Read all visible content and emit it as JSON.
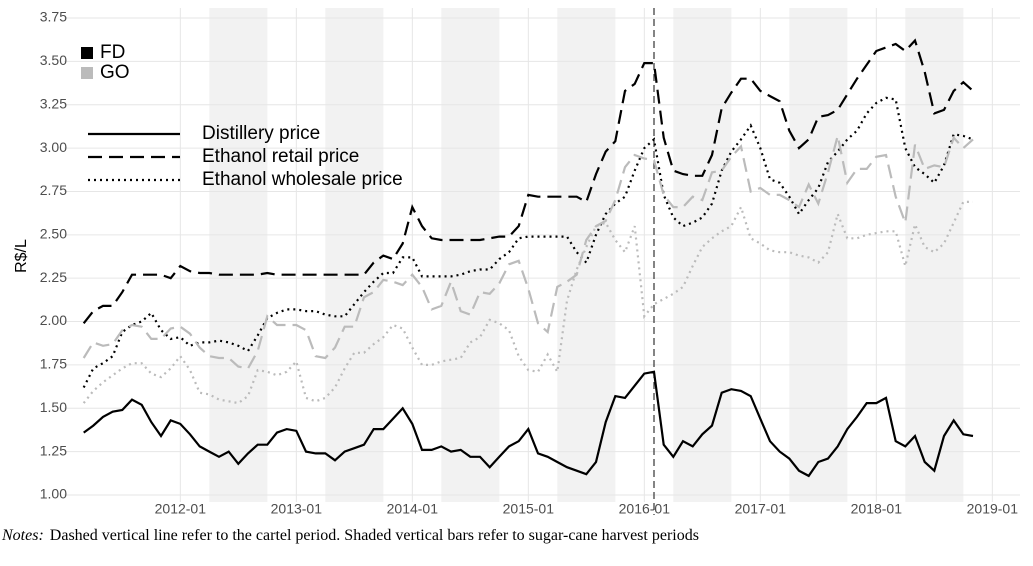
{
  "chart_data": {
    "type": "line",
    "y_label": "R$/L",
    "xlim": [
      "2011-02",
      "2019-02"
    ],
    "xticks": [
      "2012-01",
      "2013-01",
      "2014-01",
      "2015-01",
      "2016-01",
      "2017-01",
      "2018-01",
      "2019-01"
    ],
    "ylim": [
      1.0,
      3.75
    ],
    "yticks": [
      {
        "value": 1,
        "label": "1.00"
      },
      1.25,
      {
        "value": 1.5,
        "label": "1.50"
      },
      1.75,
      {
        "value": 2,
        "label": "2.00"
      },
      2.25,
      {
        "value": 2.5,
        "label": "2.50"
      },
      2.75,
      {
        "value": 3,
        "label": "3.00"
      },
      3.25,
      {
        "value": 3.5,
        "label": "3.50"
      },
      3.75
    ],
    "grid": true,
    "shaded": [
      [
        "2012-04",
        "2012-10"
      ],
      [
        "2013-04",
        "2013-10"
      ],
      [
        "2014-04",
        "2014-10"
      ],
      [
        "2015-04",
        "2015-10"
      ],
      [
        "2016-04",
        "2016-10"
      ],
      [
        "2017-04",
        "2017-10"
      ],
      [
        "2018-04",
        "2018-10"
      ]
    ],
    "shade_color": "#f2f2f2",
    "vline": "2016-02",
    "x": [
      "2011-03",
      "2011-04",
      "2011-05",
      "2011-06",
      "2011-07",
      "2011-08",
      "2011-09",
      "2011-10",
      "2011-11",
      "2011-12",
      "2012-01",
      "2012-02",
      "2012-03",
      "2012-04",
      "2012-05",
      "2012-06",
      "2012-07",
      "2012-08",
      "2012-09",
      "2012-10",
      "2012-11",
      "2012-12",
      "2013-01",
      "2013-02",
      "2013-03",
      "2013-04",
      "2013-05",
      "2013-06",
      "2013-07",
      "2013-08",
      "2013-09",
      "2013-10",
      "2013-11",
      "2013-12",
      "2014-01",
      "2014-02",
      "2014-03",
      "2014-04",
      "2014-05",
      "2014-06",
      "2014-07",
      "2014-08",
      "2014-09",
      "2014-10",
      "2014-11",
      "2014-12",
      "2015-01",
      "2015-02",
      "2015-03",
      "2015-04",
      "2015-05",
      "2015-06",
      "2015-07",
      "2015-08",
      "2015-09",
      "2015-10",
      "2015-11",
      "2015-12",
      "2016-01",
      "2016-02",
      "2016-03",
      "2016-04",
      "2016-05",
      "2016-06",
      "2016-07",
      "2016-08",
      "2016-09",
      "2016-10",
      "2016-11",
      "2016-12",
      "2017-01",
      "2017-02",
      "2017-03",
      "2017-04",
      "2017-05",
      "2017-06",
      "2017-07",
      "2017-08",
      "2017-09",
      "2017-10",
      "2017-11",
      "2017-12",
      "2018-01",
      "2018-02",
      "2018-03",
      "2018-04",
      "2018-05",
      "2018-06",
      "2018-07",
      "2018-08",
      "2018-09",
      "2018-10",
      "2018-11"
    ],
    "linetypes": [
      {
        "name": "Distillery price",
        "dash": "solid"
      },
      {
        "name": "Ethanol retail price",
        "dash": "dashed"
      },
      {
        "name": "Ethanol wholesale price",
        "dash": "dotted"
      }
    ],
    "groups": [
      {
        "name": "FD",
        "color": "#000000",
        "lines": [
          {
            "dash": "solid",
            "values": [
              1.36,
              1.4,
              1.45,
              1.48,
              1.49,
              1.55,
              1.52,
              1.42,
              1.34,
              1.43,
              1.41,
              1.35,
              1.28,
              1.25,
              1.22,
              1.25,
              1.18,
              1.24,
              1.29,
              1.29,
              1.36,
              1.38,
              1.37,
              1.25,
              1.24,
              1.24,
              1.2,
              1.25,
              1.27,
              1.29,
              1.38,
              1.38,
              1.44,
              1.5,
              1.41,
              1.26,
              1.26,
              1.28,
              1.25,
              1.26,
              1.22,
              1.22,
              1.16,
              1.22,
              1.28,
              1.31,
              1.38,
              1.24,
              1.22,
              1.19,
              1.16,
              1.14,
              1.12,
              1.19,
              1.42,
              1.57,
              1.56,
              1.63,
              1.7,
              1.71,
              1.29,
              1.22,
              1.31,
              1.28,
              1.35,
              1.4,
              1.59,
              1.61,
              1.6,
              1.57,
              1.44,
              1.31,
              1.25,
              1.21,
              1.14,
              1.11,
              1.19,
              1.21,
              1.28,
              1.38,
              1.45,
              1.53,
              1.53,
              1.56,
              1.31,
              1.28,
              1.34,
              1.19,
              1.14,
              1.34,
              1.43,
              1.35,
              1.34
            ]
          },
          {
            "dash": "dashed",
            "values": [
              1.99,
              2.06,
              2.09,
              2.09,
              2.17,
              2.27,
              2.27,
              2.27,
              2.27,
              2.25,
              2.32,
              2.29,
              2.28,
              2.28,
              2.27,
              2.27,
              2.27,
              2.27,
              2.27,
              2.28,
              2.27,
              2.27,
              2.27,
              2.27,
              2.27,
              2.27,
              2.27,
              2.27,
              2.27,
              2.27,
              2.34,
              2.38,
              2.36,
              2.45,
              2.66,
              2.55,
              2.48,
              2.47,
              2.47,
              2.47,
              2.47,
              2.47,
              2.48,
              2.49,
              2.49,
              2.55,
              2.73,
              2.72,
              2.72,
              2.72,
              2.72,
              2.72,
              2.69,
              2.85,
              2.98,
              3.04,
              3.33,
              3.37,
              3.49,
              3.49,
              3.06,
              2.87,
              2.85,
              2.84,
              2.84,
              2.96,
              3.23,
              3.32,
              3.4,
              3.4,
              3.33,
              3.3,
              3.27,
              3.1,
              3.0,
              3.05,
              3.18,
              3.19,
              3.22,
              3.31,
              3.4,
              3.48,
              3.56,
              3.58,
              3.6,
              3.56,
              3.62,
              3.44,
              3.2,
              3.22,
              3.33,
              3.38,
              3.33
            ]
          },
          {
            "dash": "dotted",
            "values": [
              1.62,
              1.73,
              1.76,
              1.8,
              1.94,
              1.98,
              2.0,
              2.05,
              1.95,
              1.9,
              1.91,
              1.86,
              1.88,
              1.88,
              1.89,
              1.88,
              1.86,
              1.83,
              1.92,
              2.02,
              2.05,
              2.07,
              2.07,
              2.06,
              2.06,
              2.04,
              2.03,
              2.03,
              2.1,
              2.17,
              2.23,
              2.28,
              2.28,
              2.37,
              2.37,
              2.26,
              2.26,
              2.26,
              2.26,
              2.27,
              2.29,
              2.3,
              2.3,
              2.36,
              2.4,
              2.48,
              2.49,
              2.49,
              2.49,
              2.49,
              2.49,
              2.4,
              2.34,
              2.5,
              2.62,
              2.68,
              2.72,
              2.87,
              3.0,
              3.05,
              2.73,
              2.6,
              2.55,
              2.57,
              2.6,
              2.68,
              2.87,
              2.98,
              3.05,
              3.13,
              3.0,
              2.82,
              2.8,
              2.72,
              2.62,
              2.7,
              2.77,
              2.92,
              2.98,
              3.05,
              3.1,
              3.2,
              3.26,
              3.29,
              3.28,
              3.0,
              2.89,
              2.85,
              2.8,
              2.9,
              3.08,
              3.07,
              3.05
            ]
          }
        ]
      },
      {
        "name": "GO",
        "color": "#bbbbbb",
        "lines": [
          {
            "dash": "dashed",
            "values": [
              1.79,
              1.88,
              1.86,
              1.87,
              1.95,
              1.98,
              1.97,
              1.9,
              1.9,
              1.96,
              1.97,
              1.93,
              1.85,
              1.8,
              1.79,
              1.79,
              1.74,
              1.73,
              1.83,
              2.03,
              1.98,
              1.98,
              1.98,
              1.95,
              1.8,
              1.79,
              1.85,
              1.97,
              1.97,
              2.14,
              2.17,
              2.24,
              2.23,
              2.21,
              2.27,
              2.2,
              2.07,
              2.09,
              2.23,
              2.06,
              2.04,
              2.17,
              2.16,
              2.22,
              2.33,
              2.35,
              2.19,
              1.99,
              1.94,
              2.2,
              2.23,
              2.27,
              2.47,
              2.55,
              2.58,
              2.7,
              2.89,
              2.96,
              2.94,
              2.93,
              2.73,
              2.66,
              2.66,
              2.72,
              2.7,
              2.86,
              2.87,
              2.95,
              3.01,
              2.75,
              2.77,
              2.73,
              2.73,
              2.7,
              2.66,
              2.79,
              2.68,
              2.86,
              3.07,
              2.8,
              2.88,
              2.88,
              2.95,
              2.96,
              2.72,
              2.57,
              3.02,
              2.88,
              2.9,
              2.89,
              3.06,
              3.0,
              3.05
            ]
          },
          {
            "dash": "dotted",
            "values": [
              1.53,
              1.6,
              1.65,
              1.69,
              1.73,
              1.76,
              1.76,
              1.7,
              1.68,
              1.73,
              1.8,
              1.72,
              1.59,
              1.58,
              1.55,
              1.54,
              1.53,
              1.57,
              1.72,
              1.71,
              1.69,
              1.71,
              1.77,
              1.56,
              1.54,
              1.56,
              1.62,
              1.73,
              1.82,
              1.82,
              1.87,
              1.91,
              1.98,
              1.96,
              1.85,
              1.75,
              1.75,
              1.77,
              1.78,
              1.79,
              1.88,
              1.91,
              2.01,
              1.99,
              1.95,
              1.8,
              1.72,
              1.71,
              1.81,
              1.71,
              2.12,
              2.3,
              2.43,
              2.55,
              2.57,
              2.47,
              2.4,
              2.55,
              2.03,
              2.1,
              2.13,
              2.16,
              2.2,
              2.32,
              2.43,
              2.48,
              2.52,
              2.55,
              2.66,
              2.48,
              2.45,
              2.41,
              2.4,
              2.4,
              2.38,
              2.37,
              2.34,
              2.4,
              2.62,
              2.48,
              2.48,
              2.5,
              2.51,
              2.52,
              2.52,
              2.32,
              2.56,
              2.43,
              2.4,
              2.45,
              2.57,
              2.69,
              2.69
            ]
          }
        ]
      }
    ]
  },
  "notes_label": "Notes:",
  "notes": "Dashed vertical line refer to the cartel period. Shaded vertical bars refer to sugar-cane harvest periods"
}
